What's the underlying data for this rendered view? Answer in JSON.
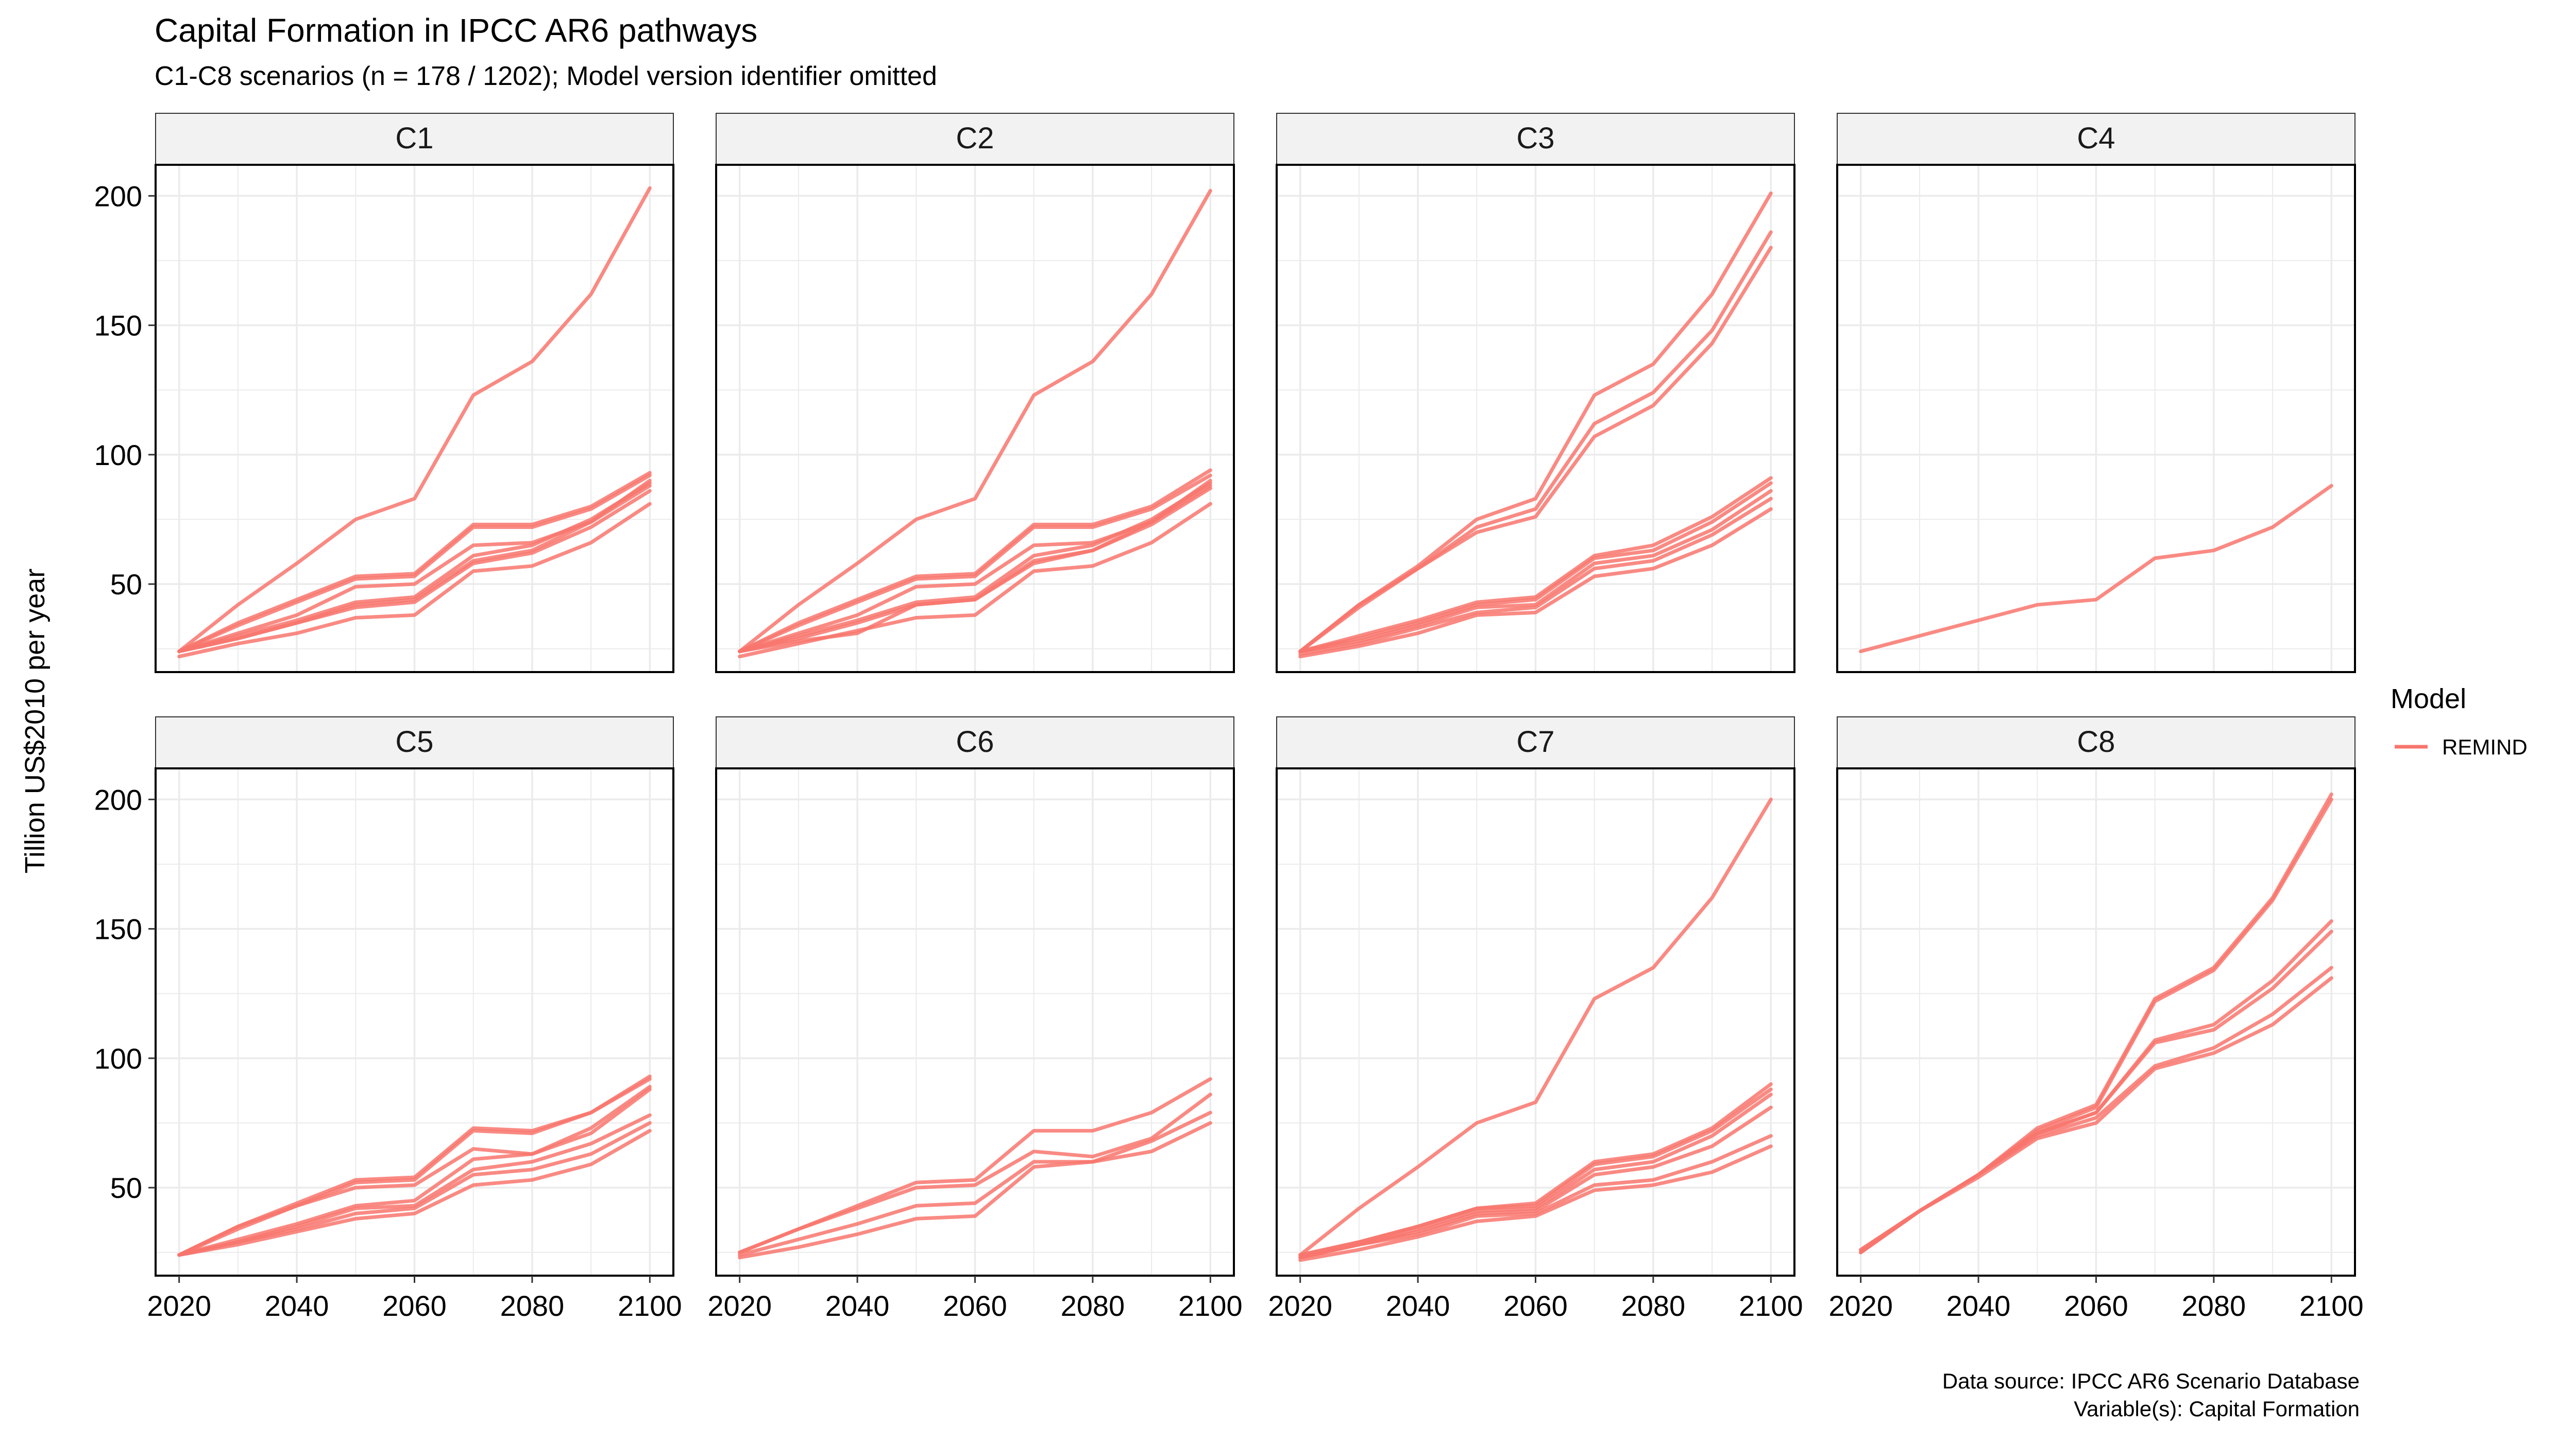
{
  "title": "Capital Formation in IPCC AR6 pathways",
  "subtitle": "C1-C8 scenarios (n = 178 / 1202); Model version identifier omitted",
  "caption": {
    "source": "Data source: IPCC AR6 Scenario Database",
    "variables": "Variable(s): Capital Formation"
  },
  "colors": {
    "line": "#F8766D",
    "strip_bg": "#F2F2F2",
    "grid": "#EBEBEB",
    "border": "#000000"
  },
  "chart_data": {
    "type": "line",
    "ylabel": "Tillion US$2010 per year",
    "xlabel": "",
    "x_ticks": [
      2020,
      2040,
      2060,
      2080,
      2100
    ],
    "y_ticks": [
      50,
      100,
      150,
      200
    ],
    "xlim": [
      2016,
      2104
    ],
    "ylim": [
      16,
      212
    ],
    "grid": true,
    "legend": {
      "title": "Model",
      "entries": [
        "REMIND"
      ],
      "position": "right"
    },
    "x": [
      2020,
      2030,
      2040,
      2050,
      2060,
      2070,
      2080,
      2090,
      2100
    ],
    "panels": [
      {
        "label": "C1",
        "series": [
          [
            24,
            42,
            58,
            75,
            83,
            123,
            136,
            162,
            203
          ],
          [
            24,
            35,
            44,
            53,
            54,
            73,
            73,
            80,
            93
          ],
          [
            24,
            34,
            43,
            52,
            53,
            72,
            72,
            79,
            92
          ],
          [
            24,
            31,
            38,
            49,
            50,
            65,
            66,
            74,
            90
          ],
          [
            24,
            30,
            36,
            43,
            45,
            61,
            65,
            75,
            89
          ],
          [
            24,
            29,
            35,
            42,
            44,
            59,
            63,
            74,
            88
          ],
          [
            24,
            29,
            35,
            41,
            43,
            58,
            62,
            72,
            86
          ],
          [
            22,
            27,
            31,
            37,
            38,
            55,
            57,
            66,
            81
          ]
        ]
      },
      {
        "label": "C2",
        "series": [
          [
            24,
            42,
            58,
            75,
            83,
            123,
            136,
            162,
            202
          ],
          [
            24,
            35,
            44,
            53,
            54,
            73,
            73,
            80,
            94
          ],
          [
            24,
            34,
            43,
            52,
            53,
            72,
            72,
            79,
            92
          ],
          [
            24,
            31,
            38,
            49,
            50,
            65,
            66,
            74,
            90
          ],
          [
            24,
            30,
            36,
            43,
            45,
            61,
            65,
            75,
            89
          ],
          [
            24,
            29,
            35,
            42,
            44,
            59,
            63,
            74,
            88
          ],
          [
            24,
            28,
            31,
            42,
            44,
            58,
            63,
            73,
            87
          ],
          [
            22,
            27,
            32,
            37,
            38,
            55,
            57,
            66,
            81
          ]
        ]
      },
      {
        "label": "C3",
        "series": [
          [
            24,
            42,
            57,
            75,
            83,
            123,
            135,
            162,
            201
          ],
          [
            24,
            42,
            56,
            72,
            79,
            112,
            124,
            148,
            186
          ],
          [
            24,
            41,
            56,
            70,
            76,
            107,
            119,
            143,
            180
          ],
          [
            24,
            30,
            36,
            43,
            45,
            61,
            65,
            76,
            91
          ],
          [
            24,
            29,
            35,
            42,
            44,
            60,
            63,
            74,
            89
          ],
          [
            24,
            28,
            34,
            41,
            42,
            58,
            61,
            71,
            86
          ],
          [
            23,
            27,
            33,
            39,
            41,
            56,
            59,
            69,
            83
          ],
          [
            22,
            26,
            31,
            38,
            39,
            53,
            56,
            65,
            79
          ]
        ]
      },
      {
        "label": "C4",
        "series": [
          [
            24,
            30,
            36,
            42,
            44,
            60,
            63,
            72,
            88
          ]
        ]
      },
      {
        "label": "C5",
        "series": [
          [
            24,
            35,
            44,
            53,
            54,
            73,
            72,
            79,
            93
          ],
          [
            24,
            35,
            43,
            52,
            53,
            72,
            71,
            79,
            92
          ],
          [
            24,
            34,
            43,
            50,
            51,
            65,
            63,
            73,
            89
          ],
          [
            24,
            30,
            36,
            43,
            45,
            61,
            63,
            71,
            88
          ],
          [
            24,
            29,
            35,
            42,
            43,
            57,
            60,
            67,
            78
          ],
          [
            24,
            29,
            34,
            40,
            42,
            55,
            57,
            63,
            75
          ],
          [
            24,
            28,
            33,
            38,
            40,
            51,
            53,
            59,
            72
          ]
        ]
      },
      {
        "label": "C6",
        "series": [
          [
            25,
            34,
            43,
            52,
            53,
            72,
            72,
            79,
            92
          ],
          [
            25,
            34,
            42,
            50,
            51,
            64,
            62,
            69,
            86
          ],
          [
            24,
            30,
            36,
            43,
            44,
            60,
            60,
            68,
            79
          ],
          [
            23,
            27,
            32,
            38,
            39,
            58,
            60,
            64,
            75
          ]
        ]
      },
      {
        "label": "C7",
        "series": [
          [
            24,
            42,
            58,
            75,
            83,
            123,
            135,
            162,
            200
          ],
          [
            24,
            29,
            35,
            42,
            44,
            60,
            63,
            73,
            90
          ],
          [
            24,
            29,
            35,
            42,
            43,
            59,
            62,
            72,
            88
          ],
          [
            23,
            28,
            34,
            41,
            42,
            57,
            60,
            70,
            86
          ],
          [
            23,
            28,
            33,
            40,
            41,
            55,
            58,
            66,
            81
          ],
          [
            23,
            28,
            32,
            39,
            40,
            51,
            53,
            60,
            70
          ],
          [
            22,
            26,
            31,
            37,
            39,
            49,
            51,
            56,
            66
          ]
        ]
      },
      {
        "label": "C8",
        "series": [
          [
            26,
            41,
            55,
            73,
            82,
            123,
            135,
            162,
            202
          ],
          [
            26,
            41,
            55,
            72,
            81,
            122,
            134,
            161,
            200
          ],
          [
            25,
            41,
            55,
            71,
            79,
            107,
            113,
            130,
            153
          ],
          [
            25,
            41,
            55,
            71,
            79,
            106,
            111,
            127,
            149
          ],
          [
            25,
            41,
            55,
            70,
            77,
            97,
            104,
            117,
            135
          ],
          [
            25,
            41,
            54,
            69,
            75,
            96,
            102,
            113,
            131
          ]
        ]
      }
    ]
  }
}
